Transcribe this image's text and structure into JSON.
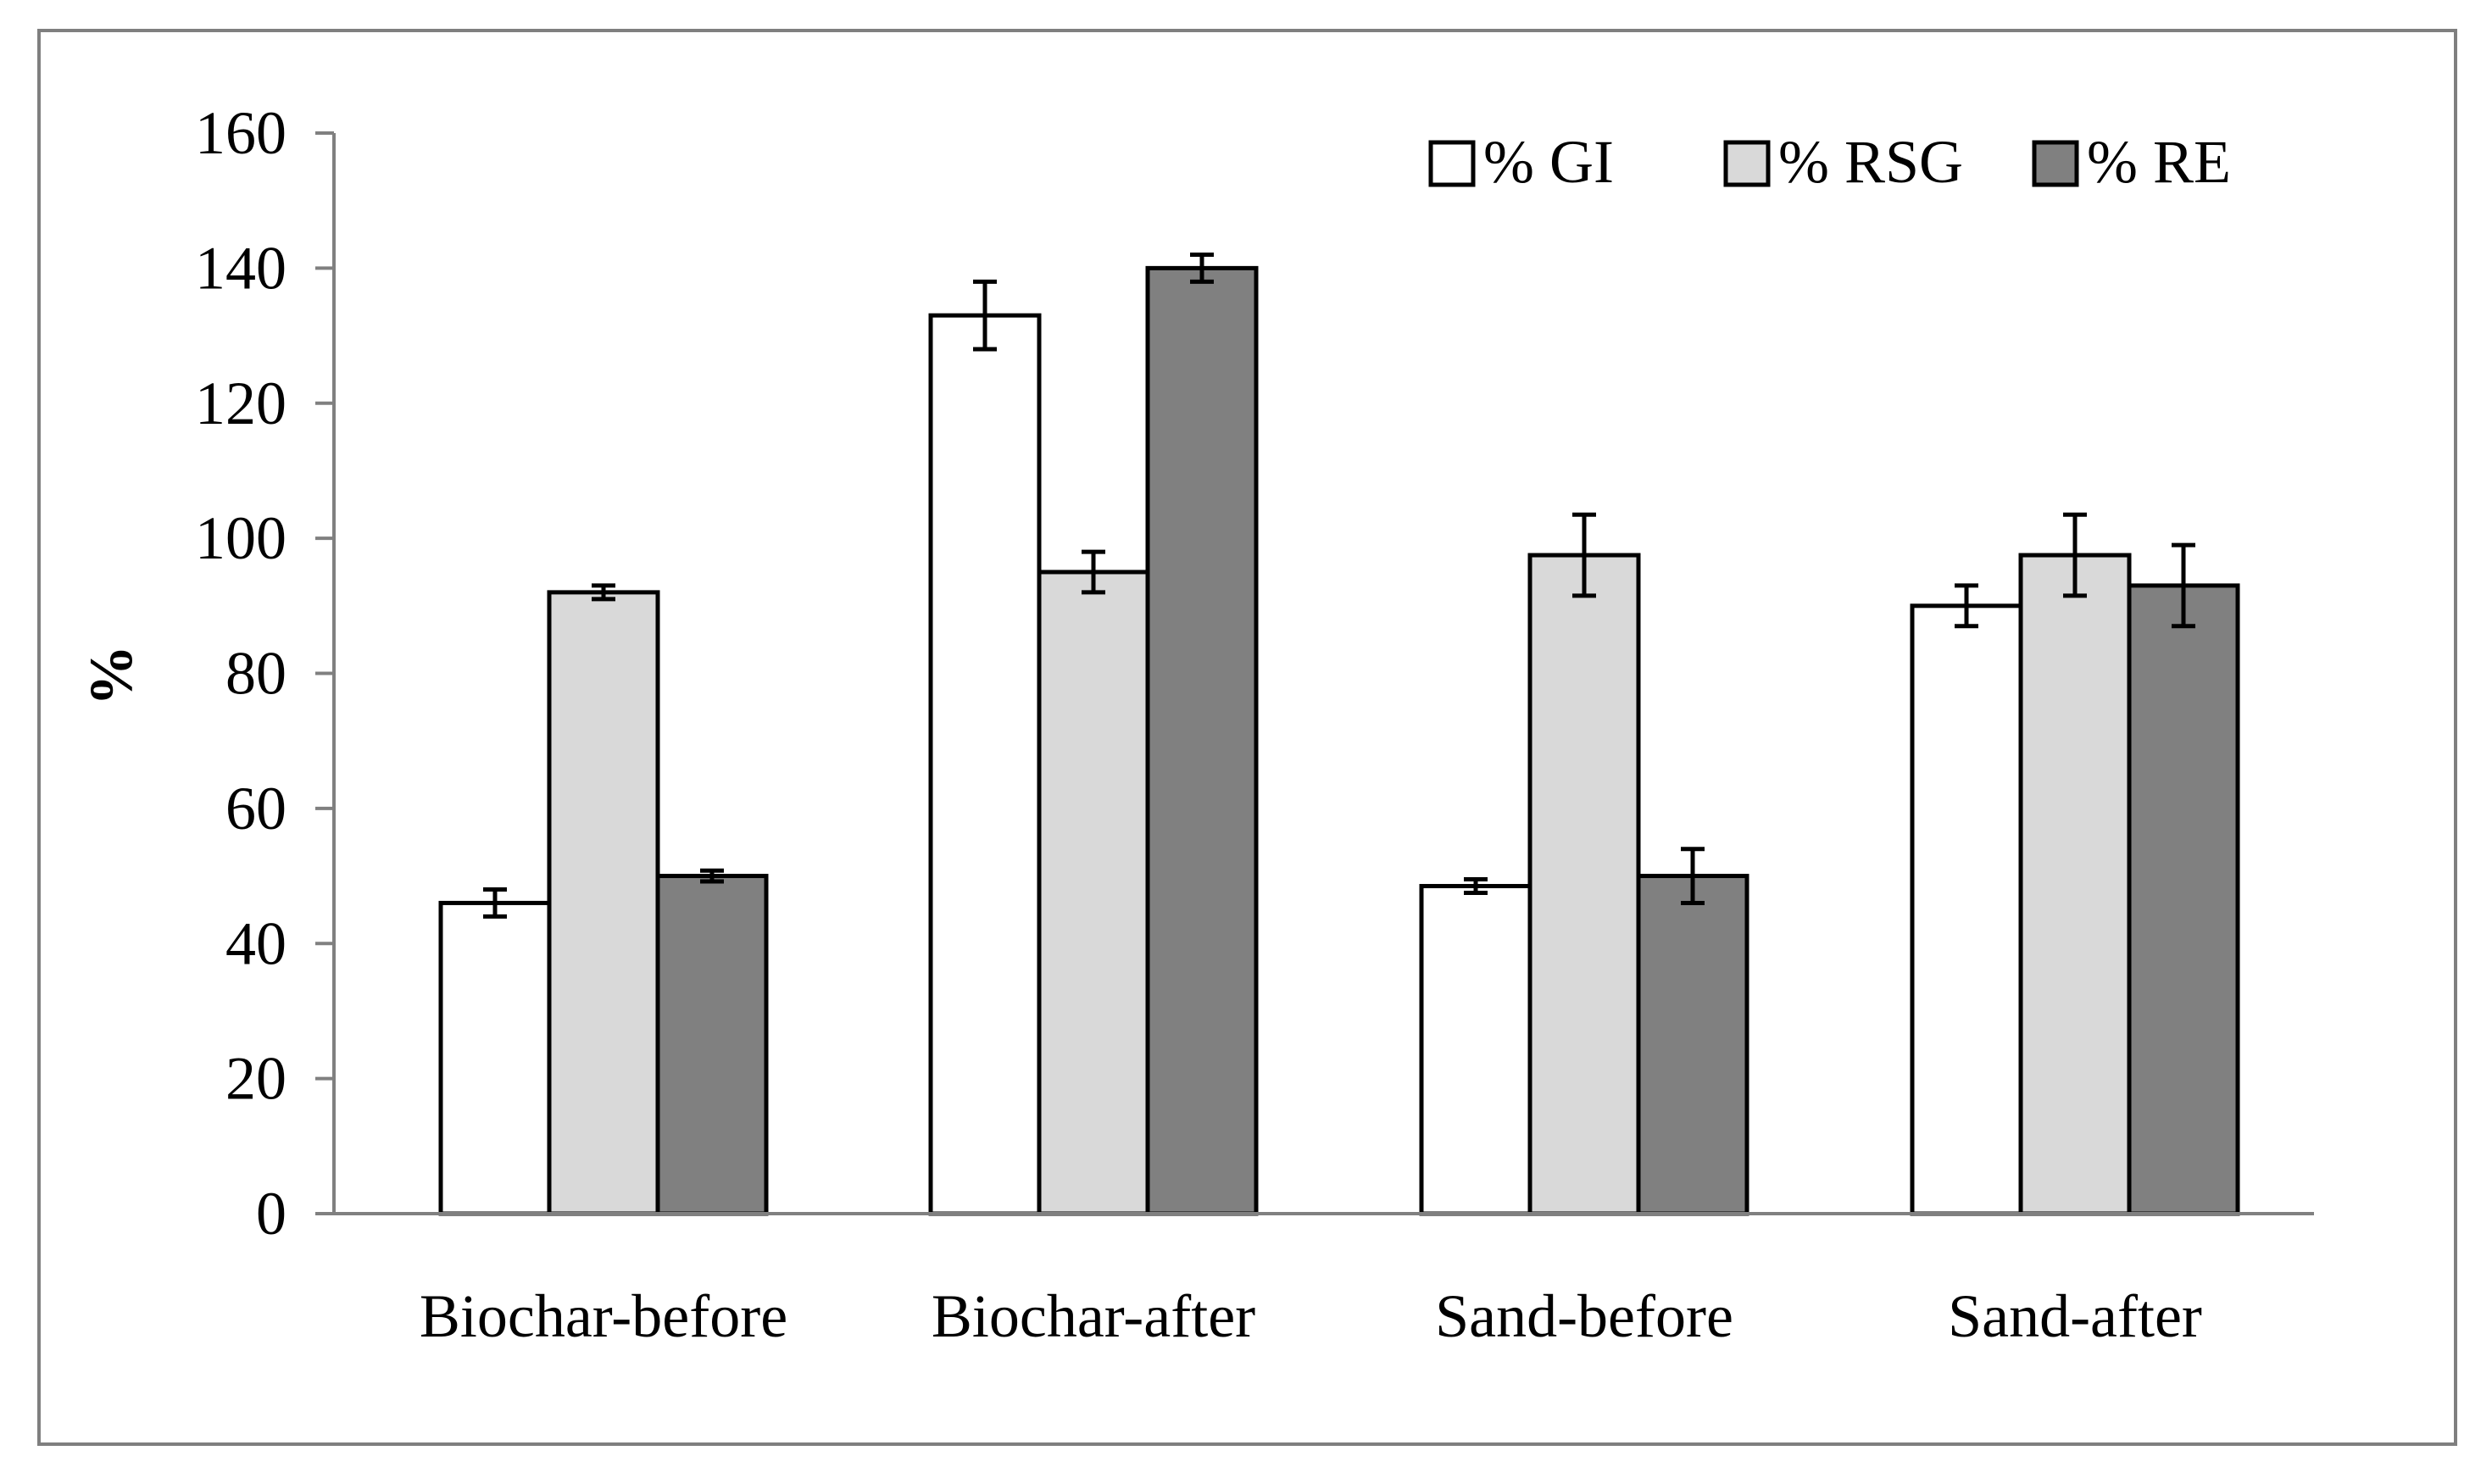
{
  "chart_data": {
    "type": "bar",
    "title": "",
    "xlabel": "",
    "ylabel": "%",
    "ylim": [
      0,
      160
    ],
    "yticks": [
      0,
      20,
      40,
      60,
      80,
      100,
      120,
      140,
      160
    ],
    "grid": false,
    "legend_position": "top-right",
    "categories": [
      "Biochar-before",
      "Biochar-after",
      "Sand-before",
      "Sand-after"
    ],
    "series": [
      {
        "name": "% GI",
        "color": "#ffffff",
        "values": [
          46,
          133,
          48.5,
          90
        ],
        "errors": [
          2,
          5,
          1,
          3
        ]
      },
      {
        "name": "% RSG",
        "color": "#d9d9d9",
        "values": [
          92,
          95,
          97.5,
          97.5
        ],
        "errors": [
          1,
          3,
          6,
          6
        ]
      },
      {
        "name": "% RE",
        "color": "#808080",
        "values": [
          50,
          140,
          50,
          93
        ],
        "errors": [
          0.8,
          2,
          4,
          6
        ]
      }
    ]
  }
}
